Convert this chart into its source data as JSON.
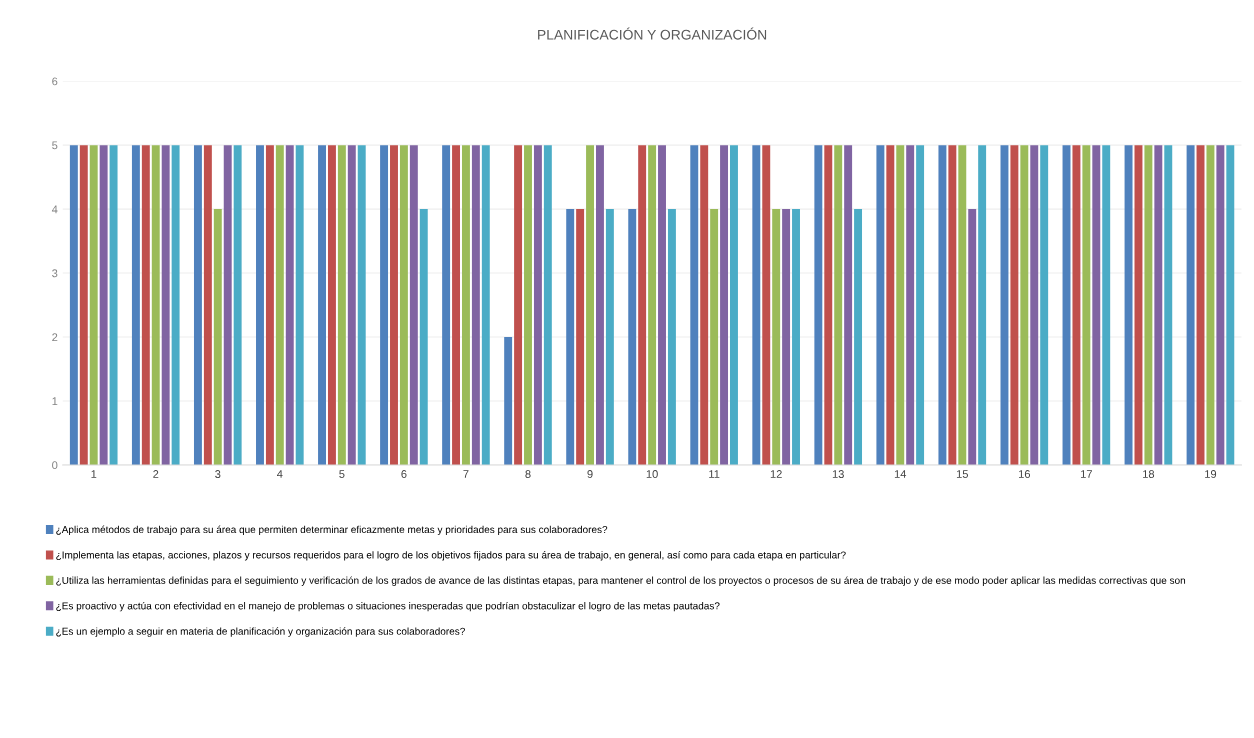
{
  "chart_data": {
    "type": "bar",
    "title": "PLANIFICACIÓN Y ORGANIZACIÓN",
    "categories": [
      "1",
      "2",
      "3",
      "4",
      "5",
      "6",
      "7",
      "8",
      "9",
      "10",
      "11",
      "12",
      "13",
      "14",
      "15",
      "16",
      "17",
      "18",
      "19"
    ],
    "series": [
      {
        "name": "¿Aplica métodos de trabajo para su área que permiten determinar eficazmente metas y prioridades para sus colaboradores?",
        "color": "#4f81bd",
        "values": [
          5,
          5,
          5,
          5,
          5,
          5,
          5,
          2,
          4,
          4,
          5,
          5,
          5,
          5,
          5,
          5,
          5,
          5,
          5
        ]
      },
      {
        "name": "¿Implementa las etapas, acciones, plazos y recursos requeridos para el logro de los objetivos fijados para su área de trabajo, en general, así como para cada etapa en particular?",
        "color": "#c0504d",
        "values": [
          5,
          5,
          5,
          5,
          5,
          5,
          5,
          5,
          4,
          5,
          5,
          5,
          5,
          5,
          5,
          5,
          5,
          5,
          5
        ]
      },
      {
        "name": "¿Utiliza las herramientas definidas para el seguimiento y verificación de los grados de avance de las distintas etapas, para mantener el control de los proyectos o procesos de su área de trabajo y de ese modo poder aplicar las medidas correctivas que son",
        "color": "#9bbb59",
        "values": [
          5,
          5,
          4,
          5,
          5,
          5,
          5,
          5,
          5,
          5,
          4,
          4,
          5,
          5,
          5,
          5,
          5,
          5,
          5
        ]
      },
      {
        "name": "¿Es proactivo y actúa con efectividad en el manejo de problemas o situaciones inesperadas que podrían obstaculizar el logro de las metas pautadas?",
        "color": "#8064a2",
        "values": [
          5,
          5,
          5,
          5,
          5,
          5,
          5,
          5,
          5,
          5,
          5,
          4,
          5,
          5,
          4,
          5,
          5,
          5,
          5
        ]
      },
      {
        "name": "¿Es un ejemplo a seguir en materia de planificación y organización para sus colaboradores?",
        "color": "#4bacc6",
        "values": [
          5,
          5,
          5,
          5,
          5,
          4,
          5,
          5,
          4,
          4,
          5,
          4,
          4,
          5,
          5,
          5,
          5,
          5,
          5
        ]
      }
    ],
    "ylim": [
      0,
      6
    ],
    "yticks": [
      0,
      1,
      2,
      3,
      4,
      5,
      6
    ],
    "grid": "y",
    "legend": "bottom"
  }
}
